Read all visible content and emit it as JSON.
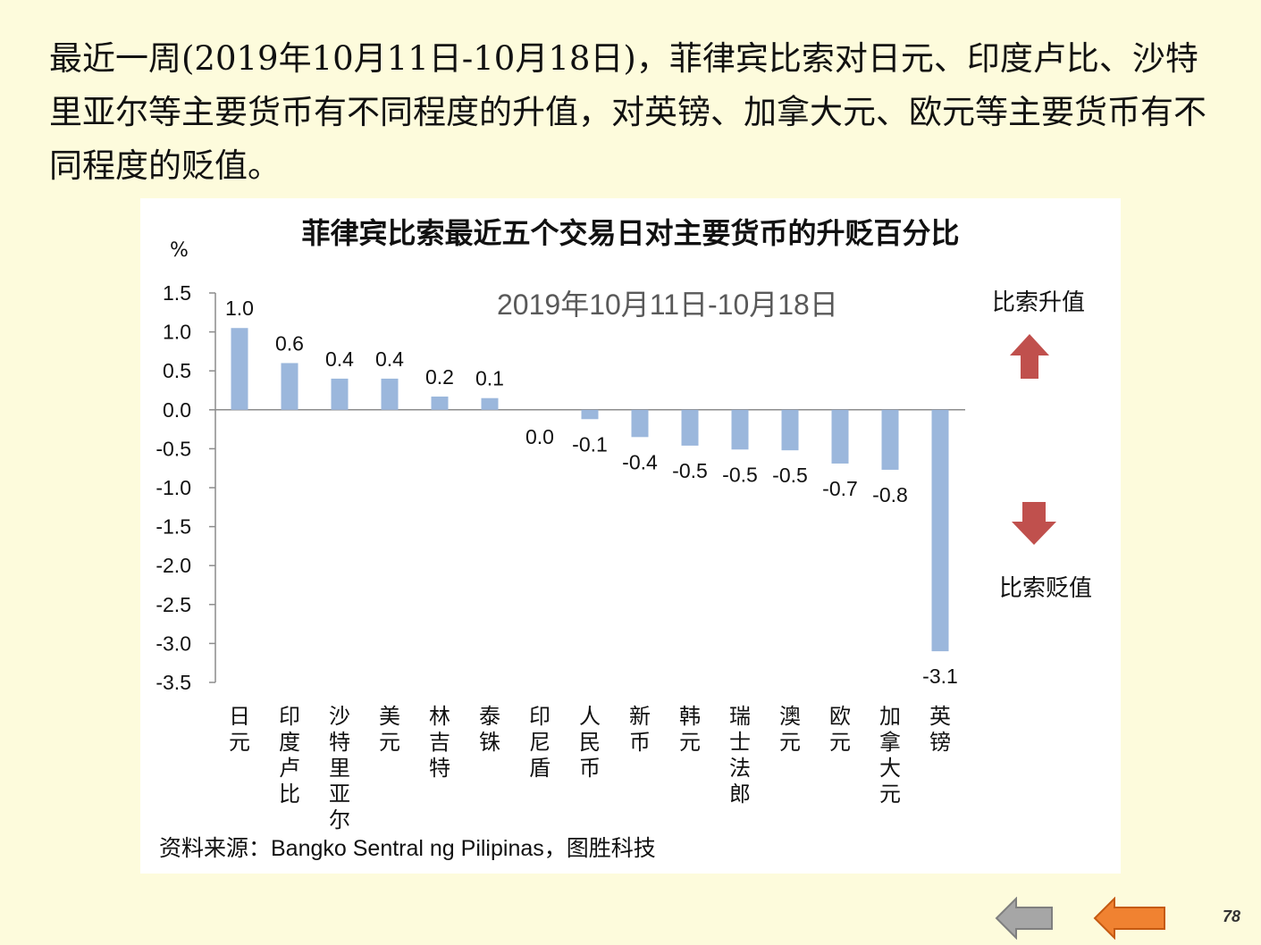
{
  "intro_text": "最近一周(2019年10月11日-10月18日)，菲律宾比索对日元、印度卢比、沙特里亚尔等主要货币有不同程度的升值，对英镑、加拿大元、欧元等主要货币有不同程度的贬值。",
  "appreciate_label": "比索升值",
  "depreciate_label": "比索贬值",
  "source": "资料来源：Bangko  Sentral ng Pilipinas，图胜科技",
  "page_number": "78",
  "colors": {
    "bar": "#9bb7dc",
    "arrow": "#c0504d",
    "nav_prev": "#a6a6a6",
    "nav_next": "#f08231",
    "background": "#fdfbdc"
  },
  "chart_data": {
    "type": "bar",
    "title": "菲律宾比索最近五个交易日对主要货币的升贬百分比",
    "subtitle": "2019年10月11日-10月18日",
    "ylabel": "%",
    "xlabel": "",
    "ylim": [
      -3.5,
      1.5
    ],
    "yticks": [
      "1.5",
      "1.0",
      "0.5",
      "0.0",
      "-0.5",
      "-1.0",
      "-1.5",
      "-2.0",
      "-2.5",
      "-3.0",
      "-3.5"
    ],
    "categories": [
      "日元",
      "印度卢比",
      "沙特里亚尔",
      "美元",
      "林吉特",
      "泰铢",
      "印尼盾",
      "人民币",
      "新币",
      "韩元",
      "瑞士法郎",
      "澳元",
      "欧元",
      "加拿大元",
      "英镑"
    ],
    "values": [
      1.05,
      0.6,
      0.4,
      0.4,
      0.17,
      0.15,
      0.0,
      -0.12,
      -0.35,
      -0.46,
      -0.51,
      -0.52,
      -0.69,
      -0.77,
      -3.1
    ],
    "data_labels": [
      "1.0",
      "0.6",
      "0.4",
      "0.4",
      "0.2",
      "0.1",
      "0.0",
      "-0.1",
      "-0.4",
      "-0.5",
      "-0.5",
      "-0.5",
      "-0.7",
      "-0.8",
      "-3.1"
    ],
    "grid": false,
    "legend": "none"
  }
}
